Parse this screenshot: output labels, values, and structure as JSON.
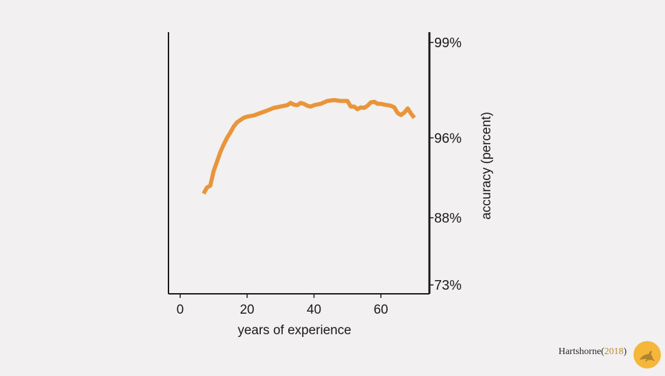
{
  "chart_data": {
    "type": "line",
    "xlabel": "years of experience",
    "ylabel": "accuracy (percent)",
    "xlim": [
      -3.5,
      74.5
    ],
    "x_ticks": [
      0,
      20,
      40,
      60
    ],
    "y_ticks": [
      "99%",
      "96%",
      "88%",
      "73%"
    ],
    "y_scale": "logit-like (nonlinear)",
    "y_axis_side": "right",
    "grid": false,
    "colors": {
      "line": "#e8953a",
      "axis": "#1a1a1a",
      "background": "#f2f0f1"
    },
    "series": [
      {
        "points": [
          [
            7,
            91.3
          ],
          [
            8,
            92.0
          ],
          [
            9,
            92.2
          ],
          [
            10,
            93.6
          ],
          [
            11,
            94.4
          ],
          [
            12,
            95.1
          ],
          [
            13,
            95.6
          ],
          [
            14,
            96.0
          ],
          [
            15,
            96.3
          ],
          [
            16,
            96.6
          ],
          [
            17,
            96.8
          ],
          [
            18,
            96.9
          ],
          [
            19,
            97.0
          ],
          [
            20,
            97.05
          ],
          [
            22,
            97.1
          ],
          [
            24,
            97.2
          ],
          [
            26,
            97.3
          ],
          [
            28,
            97.4
          ],
          [
            30,
            97.45
          ],
          [
            32,
            97.5
          ],
          [
            33,
            97.58
          ],
          [
            34,
            97.52
          ],
          [
            35,
            97.5
          ],
          [
            36,
            97.58
          ],
          [
            37,
            97.55
          ],
          [
            38,
            97.48
          ],
          [
            39,
            97.45
          ],
          [
            40,
            97.5
          ],
          [
            42,
            97.55
          ],
          [
            44,
            97.65
          ],
          [
            46,
            97.68
          ],
          [
            48,
            97.65
          ],
          [
            50,
            97.65
          ],
          [
            51,
            97.45
          ],
          [
            52,
            97.45
          ],
          [
            53,
            97.35
          ],
          [
            54,
            97.42
          ],
          [
            55,
            97.4
          ],
          [
            56,
            97.48
          ],
          [
            57,
            97.6
          ],
          [
            58,
            97.62
          ],
          [
            59,
            97.55
          ],
          [
            60,
            97.55
          ],
          [
            61,
            97.52
          ],
          [
            62,
            97.5
          ],
          [
            63,
            97.48
          ],
          [
            64,
            97.42
          ],
          [
            65,
            97.2
          ],
          [
            66,
            97.12
          ],
          [
            67,
            97.22
          ],
          [
            68,
            97.38
          ],
          [
            69,
            97.18
          ],
          [
            70,
            97.0
          ]
        ]
      }
    ]
  },
  "credit": {
    "author": "Hartshorne",
    "year_open": " (",
    "year": "2018",
    "year_close": ")"
  },
  "logo": {
    "icon": "kangaroo-icon"
  }
}
